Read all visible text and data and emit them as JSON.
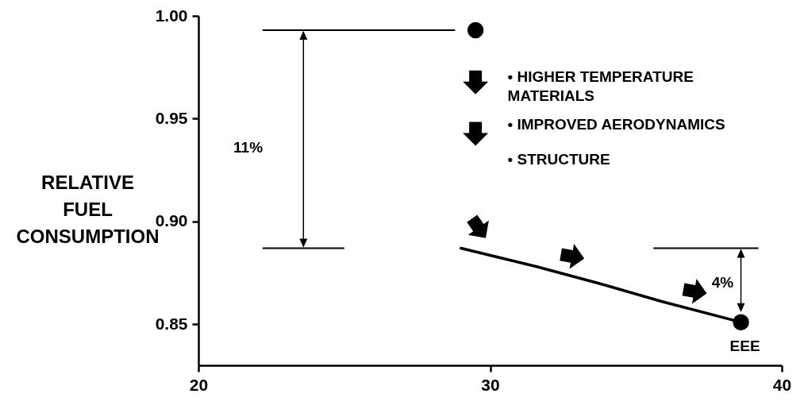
{
  "chart_data": {
    "type": "line",
    "ylabel": "RELATIVE FUEL CONSUMPTION",
    "xlim": [
      20,
      40
    ],
    "xticks": [
      20,
      30,
      40
    ],
    "ylim": [
      0.83,
      1.0
    ],
    "yticks": [
      {
        "value": 0.85,
        "label": "0.85"
      },
      {
        "value": 0.9,
        "label": "0.90"
      },
      {
        "value": 0.95,
        "label": "0.95"
      },
      {
        "value": 1.0,
        "label": "1.00"
      }
    ],
    "grid": false,
    "line_style": "solid",
    "series": [
      {
        "color": "#000000",
        "x": [
          29.0,
          31.6,
          33.7,
          35.9,
          38.6
        ],
        "values": [
          0.887,
          0.878,
          0.87,
          0.861,
          0.851
        ]
      },
      {
        "type": "scatter",
        "marker": "circle",
        "color": "#000000",
        "x": [
          29.5,
          38.6
        ],
        "values": [
          0.993,
          0.851
        ]
      }
    ],
    "annotations": [
      "• HIGHER TEMPERATURE MATERIALS",
      "• IMPROVED AERODYNAMICS",
      "• STRUCTURE",
      "11%",
      "4%",
      {
        "text": "EEE",
        "x": 38.6,
        "y": 0.851
      }
    ]
  }
}
